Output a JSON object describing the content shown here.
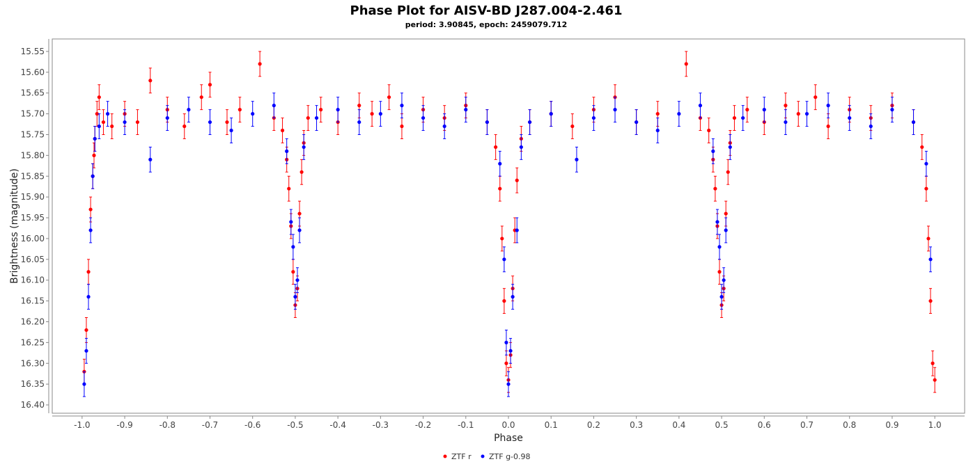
{
  "chart_data": {
    "type": "scatter",
    "title": "Phase Plot for AISV-BD J287.004-2.461",
    "subtitle": "period: 3.90845, epoch: 2459079.712",
    "xlabel": "Phase",
    "ylabel": "Brightness (magnitude)",
    "xlim": [
      -1.07,
      1.07
    ],
    "ylim": [
      15.52,
      16.42
    ],
    "y_inverted": true,
    "x_ticks": [
      "-1.0",
      "-0.9",
      "-0.8",
      "-0.7",
      "-0.6",
      "-0.5",
      "-0.4",
      "-0.3",
      "-0.2",
      "-0.1",
      "0.0",
      "0.1",
      "0.2",
      "0.3",
      "0.4",
      "0.5",
      "0.6",
      "0.7",
      "0.8",
      "0.9",
      "1.0"
    ],
    "y_ticks": [
      "15.55",
      "15.60",
      "15.65",
      "15.70",
      "15.75",
      "15.80",
      "15.85",
      "15.90",
      "15.95",
      "16.00",
      "16.05",
      "16.10",
      "16.15",
      "16.20",
      "16.25",
      "16.30",
      "16.35",
      "16.40"
    ],
    "grid": false,
    "legend_position": "bottom-center",
    "error_bar_typical": 0.03,
    "series": [
      {
        "name": "ZTF r",
        "color": "#ff0000",
        "points": [
          [
            -0.995,
            16.32
          ],
          [
            -0.99,
            16.22
          ],
          [
            -0.985,
            16.08
          ],
          [
            -0.98,
            15.93
          ],
          [
            -0.975,
            15.85
          ],
          [
            -0.972,
            15.8
          ],
          [
            -0.97,
            15.76
          ],
          [
            -0.965,
            15.7
          ],
          [
            -0.96,
            15.66
          ],
          [
            -0.95,
            15.72
          ],
          [
            -0.93,
            15.73
          ],
          [
            -0.9,
            15.7
          ],
          [
            -0.87,
            15.72
          ],
          [
            -0.84,
            15.62
          ],
          [
            -0.8,
            15.69
          ],
          [
            -0.76,
            15.73
          ],
          [
            -0.72,
            15.66
          ],
          [
            -0.7,
            15.63
          ],
          [
            -0.66,
            15.72
          ],
          [
            -0.63,
            15.69
          ],
          [
            -0.583,
            15.58
          ],
          [
            -0.55,
            15.71
          ],
          [
            -0.53,
            15.74
          ],
          [
            -0.52,
            15.81
          ],
          [
            -0.515,
            15.88
          ],
          [
            -0.51,
            15.97
          ],
          [
            -0.505,
            16.08
          ],
          [
            -0.5,
            16.16
          ],
          [
            -0.495,
            16.12
          ],
          [
            -0.49,
            15.94
          ],
          [
            -0.485,
            15.84
          ],
          [
            -0.48,
            15.77
          ],
          [
            -0.47,
            15.71
          ],
          [
            -0.44,
            15.69
          ],
          [
            -0.4,
            15.72
          ],
          [
            -0.35,
            15.68
          ],
          [
            -0.32,
            15.7
          ],
          [
            -0.28,
            15.66
          ],
          [
            -0.25,
            15.73
          ],
          [
            -0.2,
            15.69
          ],
          [
            -0.15,
            15.71
          ],
          [
            -0.1,
            15.68
          ],
          [
            -0.05,
            15.72
          ],
          [
            -0.03,
            15.78
          ],
          [
            -0.02,
            15.88
          ],
          [
            -0.015,
            16.0
          ],
          [
            -0.01,
            16.15
          ],
          [
            -0.005,
            16.3
          ],
          [
            0.0,
            16.34
          ],
          [
            0.005,
            16.28
          ],
          [
            0.01,
            16.12
          ],
          [
            0.015,
            15.98
          ],
          [
            0.02,
            15.86
          ],
          [
            0.03,
            15.76
          ],
          [
            0.05,
            15.72
          ],
          [
            0.1,
            15.7
          ],
          [
            0.15,
            15.73
          ],
          [
            0.2,
            15.69
          ],
          [
            0.25,
            15.66
          ],
          [
            0.3,
            15.72
          ],
          [
            0.35,
            15.7
          ],
          [
            0.417,
            15.58
          ],
          [
            0.45,
            15.71
          ],
          [
            0.47,
            15.74
          ],
          [
            0.48,
            15.81
          ],
          [
            0.485,
            15.88
          ],
          [
            0.49,
            15.97
          ],
          [
            0.495,
            16.08
          ],
          [
            0.5,
            16.16
          ],
          [
            0.505,
            16.12
          ],
          [
            0.51,
            15.94
          ],
          [
            0.515,
            15.84
          ],
          [
            0.52,
            15.77
          ],
          [
            0.53,
            15.71
          ],
          [
            0.56,
            15.69
          ],
          [
            0.6,
            15.72
          ],
          [
            0.65,
            15.68
          ],
          [
            0.68,
            15.7
          ],
          [
            0.72,
            15.66
          ],
          [
            0.75,
            15.73
          ],
          [
            0.8,
            15.69
          ],
          [
            0.85,
            15.71
          ],
          [
            0.9,
            15.68
          ],
          [
            0.95,
            15.72
          ],
          [
            0.97,
            15.78
          ],
          [
            0.98,
            15.88
          ],
          [
            0.985,
            16.0
          ],
          [
            0.99,
            16.15
          ],
          [
            0.995,
            16.3
          ],
          [
            1.0,
            16.34
          ]
        ]
      },
      {
        "name": "ZTF g-0.98",
        "color": "#0000ff",
        "points": [
          [
            -0.995,
            16.35
          ],
          [
            -0.99,
            16.27
          ],
          [
            -0.985,
            16.14
          ],
          [
            -0.98,
            15.98
          ],
          [
            -0.975,
            15.85
          ],
          [
            -0.97,
            15.76
          ],
          [
            -0.96,
            15.73
          ],
          [
            -0.94,
            15.7
          ],
          [
            -0.9,
            15.72
          ],
          [
            -0.84,
            15.81
          ],
          [
            -0.8,
            15.71
          ],
          [
            -0.75,
            15.69
          ],
          [
            -0.7,
            15.72
          ],
          [
            -0.65,
            15.74
          ],
          [
            -0.6,
            15.7
          ],
          [
            -0.55,
            15.68
          ],
          [
            -0.52,
            15.79
          ],
          [
            -0.51,
            15.96
          ],
          [
            -0.505,
            16.02
          ],
          [
            -0.5,
            16.14
          ],
          [
            -0.495,
            16.1
          ],
          [
            -0.49,
            15.98
          ],
          [
            -0.48,
            15.78
          ],
          [
            -0.45,
            15.71
          ],
          [
            -0.4,
            15.69
          ],
          [
            -0.35,
            15.72
          ],
          [
            -0.3,
            15.7
          ],
          [
            -0.25,
            15.68
          ],
          [
            -0.2,
            15.71
          ],
          [
            -0.15,
            15.73
          ],
          [
            -0.1,
            15.69
          ],
          [
            -0.05,
            15.72
          ],
          [
            -0.02,
            15.82
          ],
          [
            -0.01,
            16.05
          ],
          [
            -0.005,
            16.25
          ],
          [
            0.0,
            16.35
          ],
          [
            0.005,
            16.27
          ],
          [
            0.01,
            16.14
          ],
          [
            0.02,
            15.98
          ],
          [
            0.03,
            15.78
          ],
          [
            0.05,
            15.72
          ],
          [
            0.1,
            15.7
          ],
          [
            0.16,
            15.81
          ],
          [
            0.2,
            15.71
          ],
          [
            0.25,
            15.69
          ],
          [
            0.3,
            15.72
          ],
          [
            0.35,
            15.74
          ],
          [
            0.4,
            15.7
          ],
          [
            0.45,
            15.68
          ],
          [
            0.48,
            15.79
          ],
          [
            0.49,
            15.96
          ],
          [
            0.495,
            16.02
          ],
          [
            0.5,
            16.14
          ],
          [
            0.505,
            16.1
          ],
          [
            0.51,
            15.98
          ],
          [
            0.52,
            15.78
          ],
          [
            0.55,
            15.71
          ],
          [
            0.6,
            15.69
          ],
          [
            0.65,
            15.72
          ],
          [
            0.7,
            15.7
          ],
          [
            0.75,
            15.68
          ],
          [
            0.8,
            15.71
          ],
          [
            0.85,
            15.73
          ],
          [
            0.9,
            15.69
          ],
          [
            0.95,
            15.72
          ],
          [
            0.98,
            15.82
          ],
          [
            0.99,
            16.05
          ]
        ]
      }
    ]
  }
}
